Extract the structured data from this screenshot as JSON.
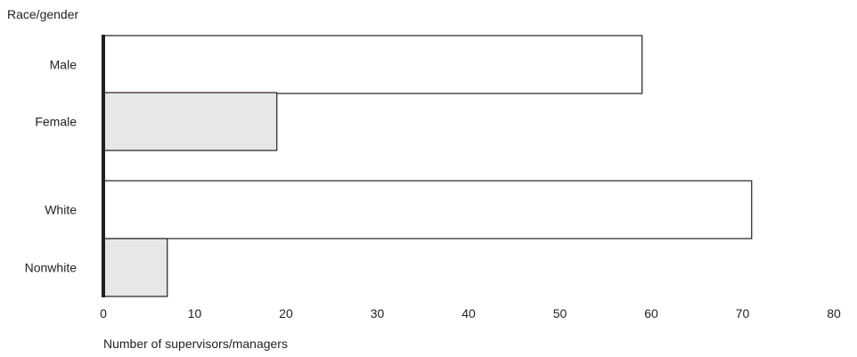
{
  "chart_data": {
    "type": "bar",
    "orientation": "horizontal",
    "title": "",
    "ylabel": "Race/gender",
    "xlabel": "Number of supervisors/managers",
    "xlim": [
      0,
      80
    ],
    "xticks": [
      "0",
      "10",
      "20",
      "30",
      "40",
      "50",
      "60",
      "70",
      "80"
    ],
    "grid": false,
    "categories": [
      "Male",
      "Female",
      "White",
      "Nonwhite"
    ],
    "values": [
      59,
      19,
      71,
      7
    ],
    "groups": [
      {
        "categories": [
          "Male",
          "Female"
        ]
      },
      {
        "categories": [
          "White",
          "Nonwhite"
        ]
      }
    ],
    "bar_colors": [
      "#ffffff",
      "#e6e7e8",
      "#ffffff",
      "#e6e7e8"
    ],
    "bar_edge_color": "#231f20",
    "axis_color": "#231f20"
  }
}
